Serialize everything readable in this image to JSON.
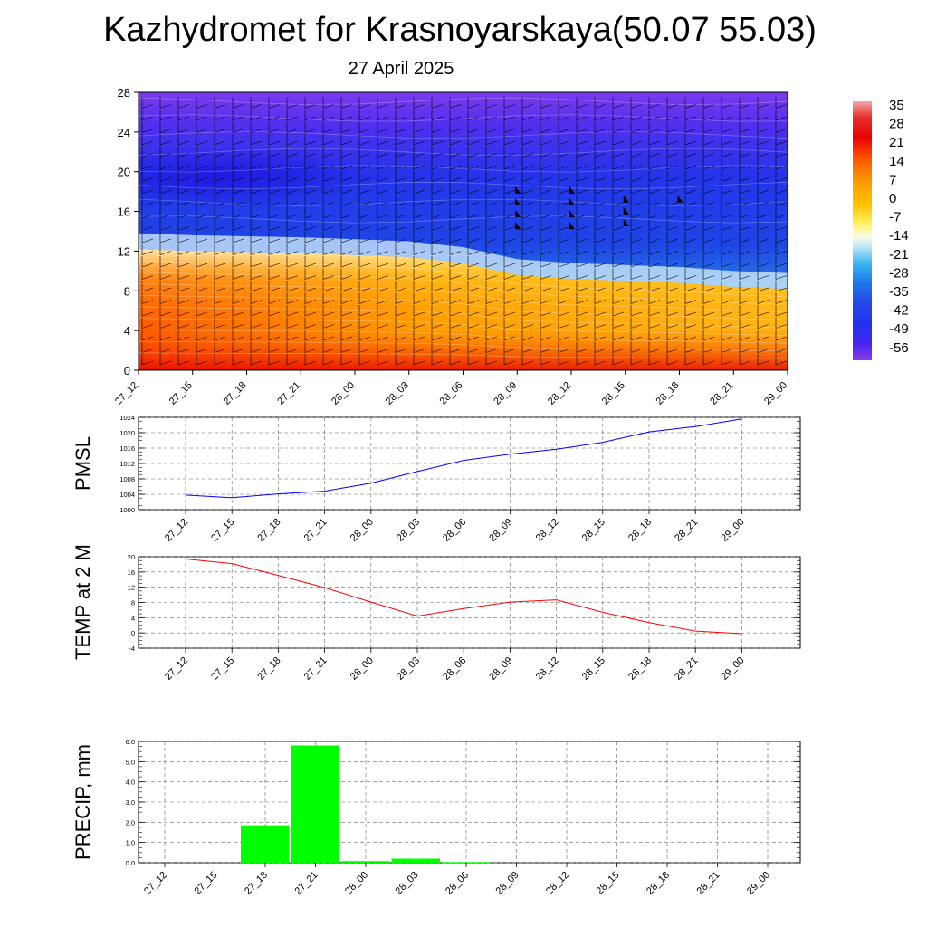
{
  "header": {
    "title": "Kazhydromet for Krasnoyarskaya(50.07 55.03)",
    "subtitle": "27 April 2025"
  },
  "colors": {
    "pmsl_line": "#0000ff",
    "temp_line": "#ff0000",
    "precip_bar": "#00ff00",
    "grid": "#666666"
  },
  "chart_data": [
    {
      "type": "heatmap",
      "title": "",
      "xlabel": "",
      "ylabel": "",
      "x_ticks": [
        "27_12",
        "27_15",
        "27_18",
        "27_21",
        "28_00",
        "28_03",
        "28_06",
        "28_09",
        "28_12",
        "28_15",
        "28_18",
        "28_21",
        "29_00"
      ],
      "y_ticks": [
        0,
        4,
        8,
        12,
        16,
        20,
        24,
        28
      ],
      "ylim": [
        0,
        28
      ],
      "colorbar": {
        "labels": [
          "35",
          "28",
          "21",
          "14",
          "7",
          "0",
          "-7",
          "-14",
          "-21",
          "-28",
          "-35",
          "-42",
          "-49",
          "-56"
        ],
        "range": [
          -60,
          38
        ]
      },
      "freezing_level": [
        12.2,
        12.0,
        11.9,
        11.8,
        11.6,
        11.4,
        10.8,
        9.6,
        9.2,
        9.0,
        8.8,
        8.4,
        8.2
      ],
      "cold_core": {
        "x_index": 1.5,
        "level": 19.5
      },
      "wind_barbs": "true",
      "pennants": {
        "x_index": [
          7,
          8,
          9,
          10
        ],
        "levels": [
          [
            17.8,
            16.6,
            15.4,
            14.2
          ],
          [
            17.8,
            16.6,
            15.4,
            14.2
          ],
          [
            16.9,
            15.7,
            14.5
          ],
          [
            16.9
          ]
        ]
      }
    },
    {
      "type": "line",
      "title": "",
      "xlabel": "",
      "ylabel": "PMSL",
      "categories": [
        "27_12",
        "27_15",
        "27_18",
        "27_21",
        "28_00",
        "28_03",
        "28_06",
        "28_09",
        "28_12",
        "28_15",
        "28_18",
        "28_21",
        "29_00"
      ],
      "series": [
        {
          "values": [
            1003.8,
            1003.1,
            1004.1,
            1004.8,
            1006.9,
            1009.9,
            1012.8,
            1014.4,
            1015.7,
            1017.5,
            1020.2,
            1021.6,
            1023.6
          ]
        }
      ],
      "ylim": [
        1000,
        1024
      ],
      "y_ticks": [
        1000,
        1004,
        1008,
        1012,
        1016,
        1020,
        1024
      ],
      "grid": true
    },
    {
      "type": "line",
      "title": "",
      "xlabel": "",
      "ylabel": "TEMP at 2 M",
      "categories": [
        "27_12",
        "27_15",
        "27_18",
        "27_21",
        "28_00",
        "28_03",
        "28_06",
        "28_09",
        "28_12",
        "28_15",
        "28_18",
        "28_21",
        "29_00"
      ],
      "series": [
        {
          "values": [
            19.4,
            18.2,
            15.1,
            11.9,
            8.1,
            4.4,
            6.4,
            8.1,
            8.7,
            5.4,
            2.7,
            0.5,
            -0.2
          ]
        }
      ],
      "ylim": [
        -4,
        20
      ],
      "y_ticks": [
        -4,
        0,
        4,
        8,
        12,
        16,
        20
      ],
      "grid": true
    },
    {
      "type": "bar",
      "title": "",
      "xlabel": "",
      "ylabel": "PRECIP, mm",
      "categories": [
        "27_12",
        "27_15",
        "27_18",
        "27_21",
        "28_00",
        "28_03",
        "28_06",
        "28_09",
        "28_12",
        "28_15",
        "28_18",
        "28_21",
        "29_00"
      ],
      "values": [
        0,
        0,
        1.85,
        5.8,
        0.08,
        0.2,
        0.03,
        0,
        0,
        0,
        0,
        0,
        0
      ],
      "ylim": [
        0,
        6
      ],
      "y_ticks": [
        "0.0",
        "1.0",
        "2.0",
        "3.0",
        "4.0",
        "5.0",
        "6.0"
      ],
      "grid": true
    }
  ]
}
